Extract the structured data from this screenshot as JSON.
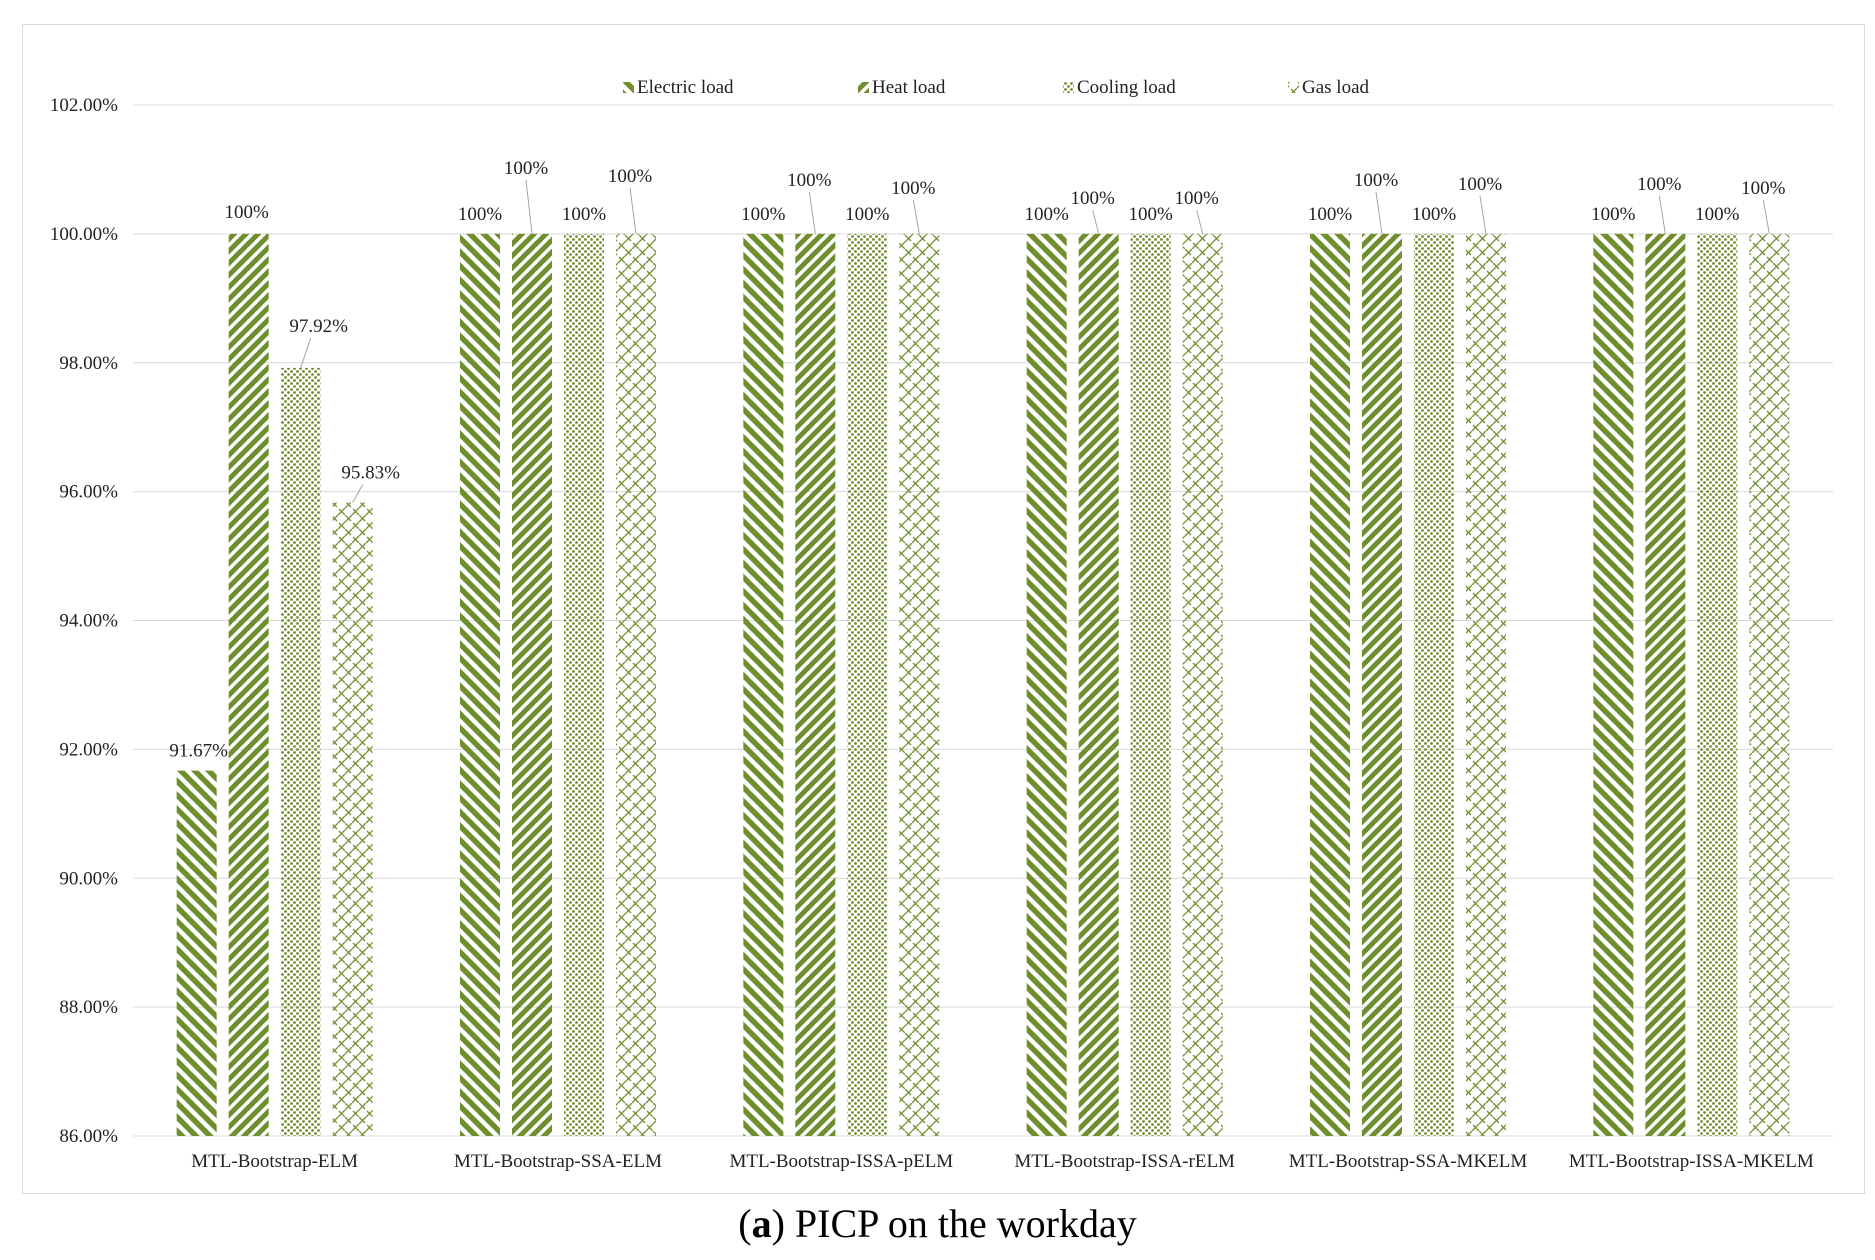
{
  "caption": {
    "label": "a",
    "text": "PICP on the workday"
  },
  "colors": {
    "series": "#6f8f2e",
    "grid": "#d9d9d9",
    "text": "#222222",
    "leader": "#a6a6a6"
  },
  "chart_data": {
    "type": "bar",
    "title": "",
    "xlabel": "",
    "ylabel": "",
    "ylim": [
      86,
      102
    ],
    "ytick_step": 2,
    "ytick_format": "percent_2dp",
    "grid": true,
    "legend_position": "top",
    "categories": [
      "MTL-Bootstrap-ELM",
      "MTL-Bootstrap-SSA-ELM",
      "MTL-Bootstrap-ISSA-pELM",
      "MTL-Bootstrap-ISSA-rELM",
      "MTL-Bootstrap-SSA-MKELM",
      "MTL-Bootstrap-ISSA-MKELM"
    ],
    "series": [
      {
        "name": "Electric load",
        "pattern": "diag-wide",
        "values": [
          91.67,
          100,
          100,
          100,
          100,
          100
        ],
        "labels": [
          "91.67%",
          "100%",
          "100%",
          "100%",
          "100%",
          "100%"
        ]
      },
      {
        "name": "Heat load",
        "pattern": "diag-dash",
        "values": [
          100,
          100,
          100,
          100,
          100,
          100
        ],
        "labels": [
          "100%",
          "100%",
          "100%",
          "100%",
          "100%",
          "100%"
        ]
      },
      {
        "name": "Cooling load",
        "pattern": "dots",
        "values": [
          97.92,
          100,
          100,
          100,
          100,
          100
        ],
        "labels": [
          "97.92%",
          "100%",
          "100%",
          "100%",
          "100%",
          "100%"
        ]
      },
      {
        "name": "Gas load",
        "pattern": "weave",
        "values": [
          95.83,
          100,
          100,
          100,
          100,
          100
        ],
        "labels": [
          "95.83%",
          "100%",
          "100%",
          "100%",
          "100%",
          "100%"
        ]
      }
    ]
  }
}
